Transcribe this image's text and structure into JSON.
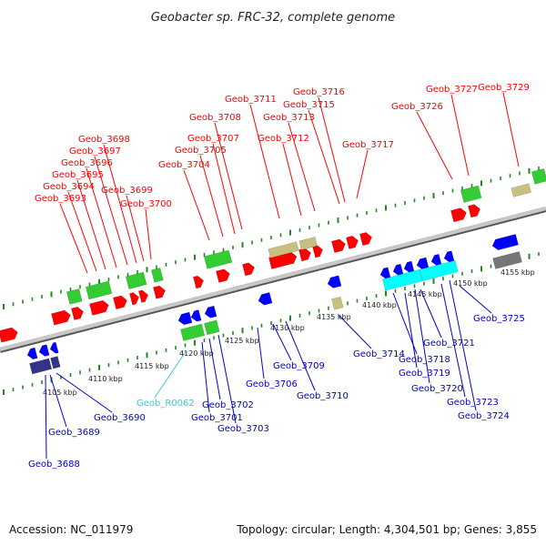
{
  "title": "Geobacter sp. FRC-32, complete genome",
  "accession": "Accession: NC_011979",
  "summary": "Topology: circular; Length: 4,304,501 bp; Genes: 3,855",
  "colors": {
    "top_label": "#ff0000",
    "bottom_label": "#0000cc",
    "rna_label": "#33ccdd",
    "red_gene": "#ff0000",
    "green_gene": "#33cc33",
    "blue_gene": "#0000ff",
    "cyan_gene": "#00ffff",
    "tan_gene": "#c8c080",
    "navy_gene": "#333388",
    "gray_gene": "#777777",
    "tick_green": "#228822",
    "axis": "#888888"
  },
  "kbp_ticks": [
    "4105 kbp",
    "4110 kbp",
    "4115 kbp",
    "4120 kbp",
    "4125 kbp",
    "4130 kbp",
    "4135 kbp",
    "4140 kbp",
    "4145 kbp",
    "4150 kbp",
    "4155 kbp"
  ],
  "top_genes": [
    "Geob_3693",
    "Geob_3694",
    "Geob_3695",
    "Geob_3696",
    "Geob_3697",
    "Geob_3698",
    "Geob_3699",
    "Geob_3700",
    "Geob_3704",
    "Geob_3705",
    "Geob_3707",
    "Geob_3708",
    "Geob_3711",
    "Geob_3712",
    "Geob_3713",
    "Geob_3715",
    "Geob_3716",
    "Geob_3717",
    "Geob_3726",
    "Geob_3727",
    "Geob_3729"
  ],
  "bottom_genes": [
    "Geob_3688",
    "Geob_3689",
    "Geob_3690",
    "Geob_R0062",
    "Geob_3701",
    "Geob_3702",
    "Geob_3703",
    "Geob_3706",
    "Geob_3709",
    "Geob_3710",
    "Geob_3714",
    "Geob_3718",
    "Geob_3719",
    "Geob_3720",
    "Geob_3721",
    "Geob_3723",
    "Geob_3724",
    "Geob_3725"
  ]
}
